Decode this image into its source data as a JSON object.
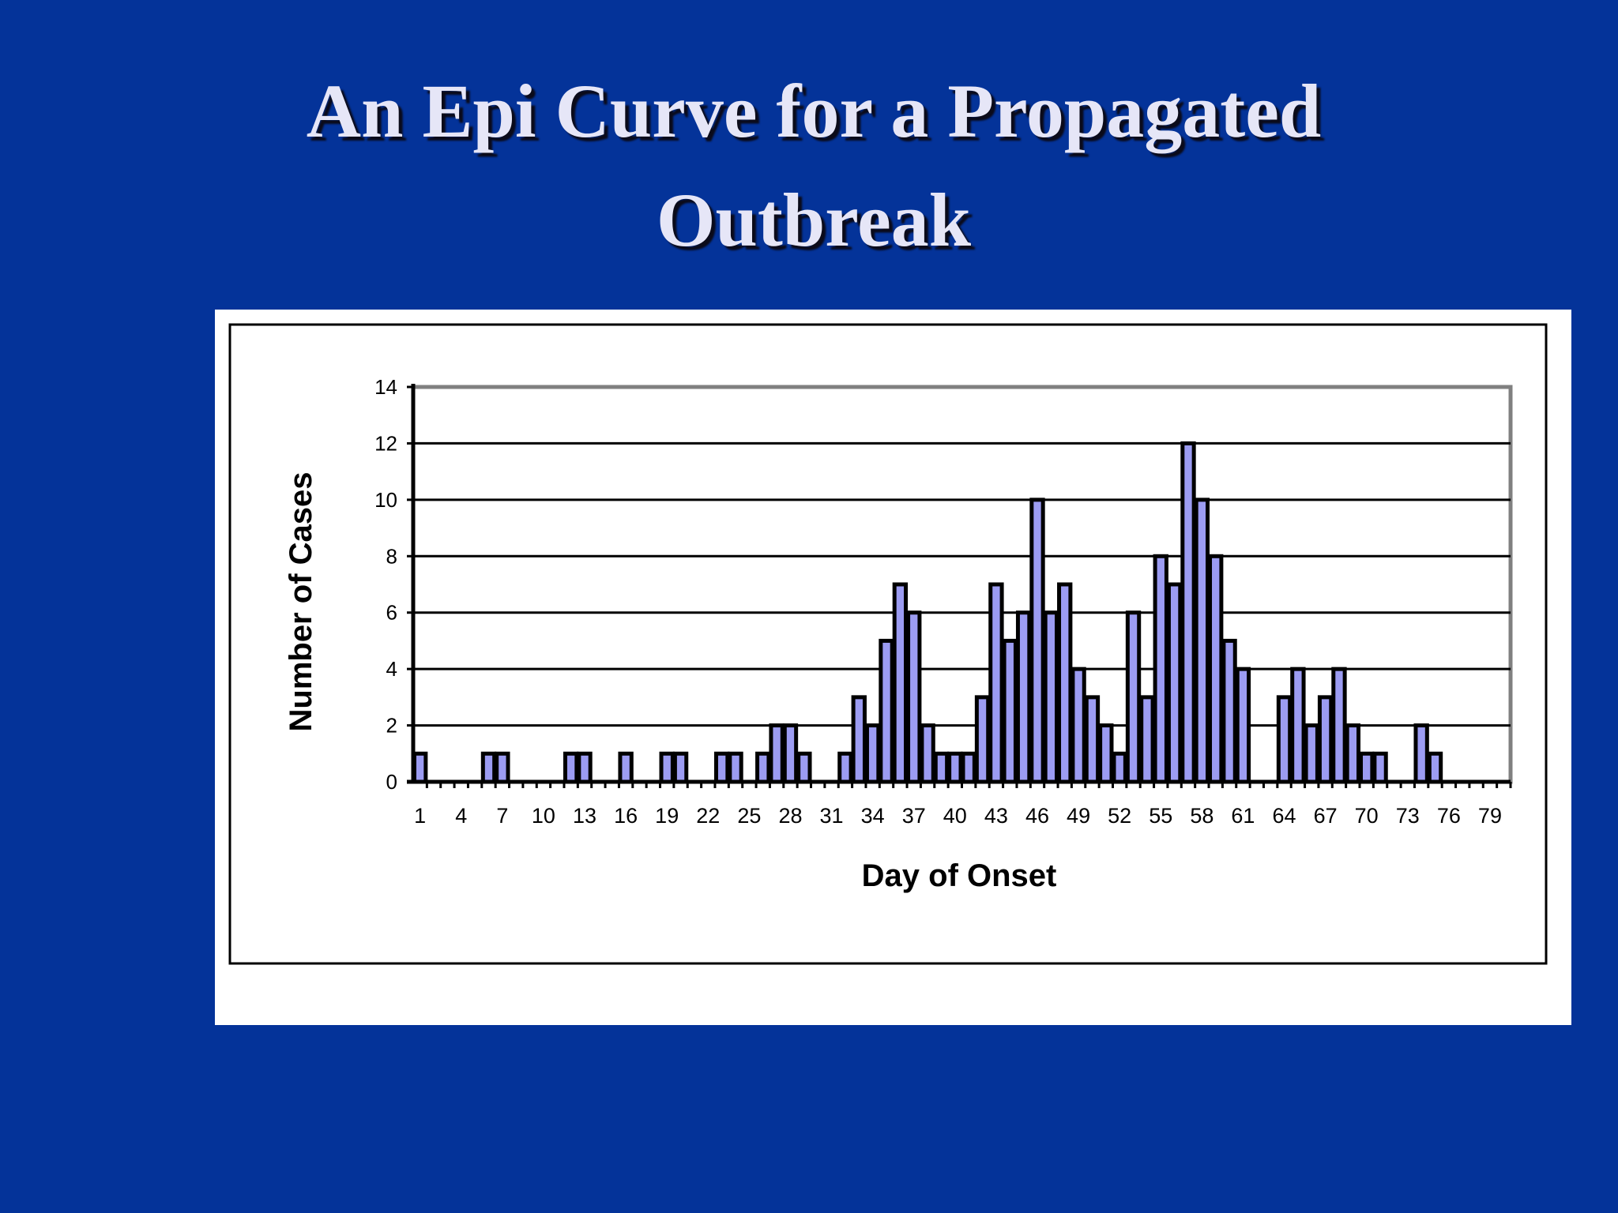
{
  "slide": {
    "title_line1": "An Epi Curve for a Propagated",
    "title_line2": "Outbreak"
  },
  "colors": {
    "background": "#043399",
    "title_text": "#e6e6f7",
    "bar_fill": "#9c9cf2",
    "bar_stroke": "#000000",
    "plot_border": "#808080"
  },
  "chart_data": {
    "type": "bar",
    "title": "",
    "xlabel": "Day of Onset",
    "ylabel": "Number of Cases",
    "ylim": [
      0,
      14
    ],
    "yticks": [
      "0",
      "2",
      "4",
      "6",
      "8",
      "10",
      "12",
      "14"
    ],
    "grid": "horizontal",
    "legend": "none",
    "x_tick_labels": [
      "1",
      "4",
      "7",
      "10",
      "13",
      "16",
      "19",
      "22",
      "25",
      "28",
      "31",
      "34",
      "37",
      "40",
      "43",
      "46",
      "49",
      "52",
      "55",
      "58",
      "61",
      "64",
      "67",
      "70",
      "73",
      "76",
      "79"
    ],
    "days": [
      1,
      2,
      3,
      4,
      5,
      6,
      7,
      8,
      9,
      10,
      11,
      12,
      13,
      14,
      15,
      16,
      17,
      18,
      19,
      20,
      21,
      22,
      23,
      24,
      25,
      26,
      27,
      28,
      29,
      30,
      31,
      32,
      33,
      34,
      35,
      36,
      37,
      38,
      39,
      40,
      41,
      42,
      43,
      44,
      45,
      46,
      47,
      48,
      49,
      50,
      51,
      52,
      53,
      54,
      55,
      56,
      57,
      58,
      59,
      60,
      61,
      62,
      63,
      64,
      65,
      66,
      67,
      68,
      69,
      70,
      71,
      72,
      73,
      74,
      75,
      76,
      77,
      78,
      79,
      80
    ],
    "values": [
      1,
      0,
      0,
      0,
      0,
      1,
      1,
      0,
      0,
      0,
      0,
      1,
      1,
      0,
      0,
      1,
      0,
      0,
      1,
      1,
      0,
      0,
      1,
      1,
      0,
      1,
      2,
      2,
      1,
      0,
      0,
      1,
      3,
      2,
      5,
      7,
      6,
      2,
      1,
      1,
      1,
      3,
      7,
      5,
      6,
      10,
      6,
      7,
      4,
      3,
      2,
      1,
      6,
      3,
      8,
      7,
      12,
      10,
      8,
      5,
      4,
      0,
      0,
      3,
      4,
      2,
      3,
      4,
      2,
      1,
      1,
      0,
      0,
      2,
      1,
      0,
      0,
      0,
      0,
      0
    ]
  }
}
